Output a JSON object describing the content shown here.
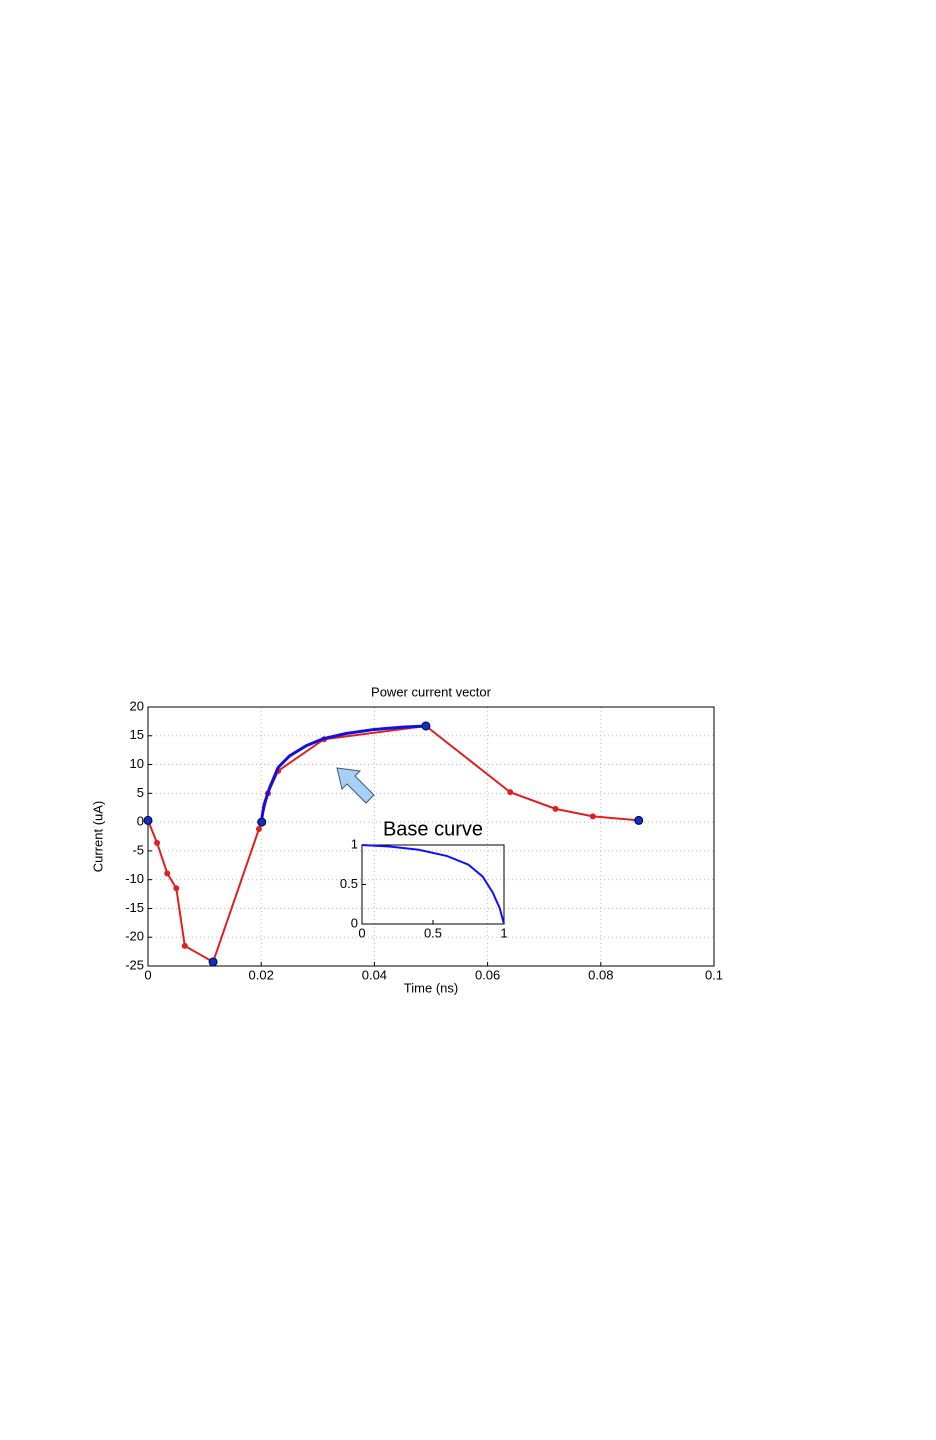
{
  "chart_data": [
    {
      "type": "line",
      "title": "Power current vector",
      "x_label": "Time (ns)",
      "y_label": "Current (uA)",
      "xlim": [
        0,
        0.1
      ],
      "ylim": [
        -25,
        20
      ],
      "xticks": [
        0,
        0.02,
        0.04,
        0.06,
        0.08,
        0.1
      ],
      "yticks": [
        -25,
        -20,
        -15,
        -10,
        -5,
        0,
        5,
        10,
        15,
        20
      ],
      "grid": true,
      "series": [
        {
          "color": "#e02020",
          "line": true,
          "marker": "dot",
          "x": [
            0,
            0.0016,
            0.0034,
            0.005,
            0.0065,
            0.0115,
            0.0196,
            0.0212,
            0.023,
            0.0311,
            0.0491,
            0.064,
            0.072,
            0.0786,
            0.0867
          ],
          "values": [
            0.3,
            -3.6,
            -8.9,
            -11.5,
            -21.5,
            -24.3,
            -1.2,
            5,
            8.9,
            14.4,
            16.7,
            5.2,
            2.3,
            1.0,
            0.3
          ]
        },
        {
          "color": "#1010e0",
          "line": true,
          "marker": "none",
          "x": [
            0.02,
            0.0205,
            0.0215,
            0.023,
            0.025,
            0.028,
            0.031,
            0.035,
            0.04,
            0.045,
            0.049
          ],
          "values": [
            0,
            3,
            6,
            9.5,
            11.5,
            13.3,
            14.5,
            15.4,
            16.1,
            16.5,
            16.7
          ]
        },
        {
          "color": "#1030c0",
          "line": false,
          "marker": "big",
          "x": [
            0,
            0.0115,
            0.0201,
            0.0491,
            0.0867
          ],
          "values": [
            0.3,
            -24.3,
            0,
            16.7,
            0.3
          ]
        }
      ]
    },
    {
      "type": "line",
      "title": "Base curve",
      "xlim": [
        0,
        1
      ],
      "ylim": [
        0,
        1
      ],
      "xticks": [
        0,
        0.5,
        1
      ],
      "yticks": [
        0,
        0.5,
        1
      ],
      "grid": false,
      "series": [
        {
          "color": "#1010ff",
          "line": true,
          "marker": "none",
          "x": [
            0,
            0.2,
            0.4,
            0.6,
            0.75,
            0.85,
            0.92,
            0.97,
            1
          ],
          "values": [
            1,
            0.98,
            0.94,
            0.86,
            0.75,
            0.6,
            0.4,
            0.2,
            0
          ]
        }
      ]
    }
  ]
}
